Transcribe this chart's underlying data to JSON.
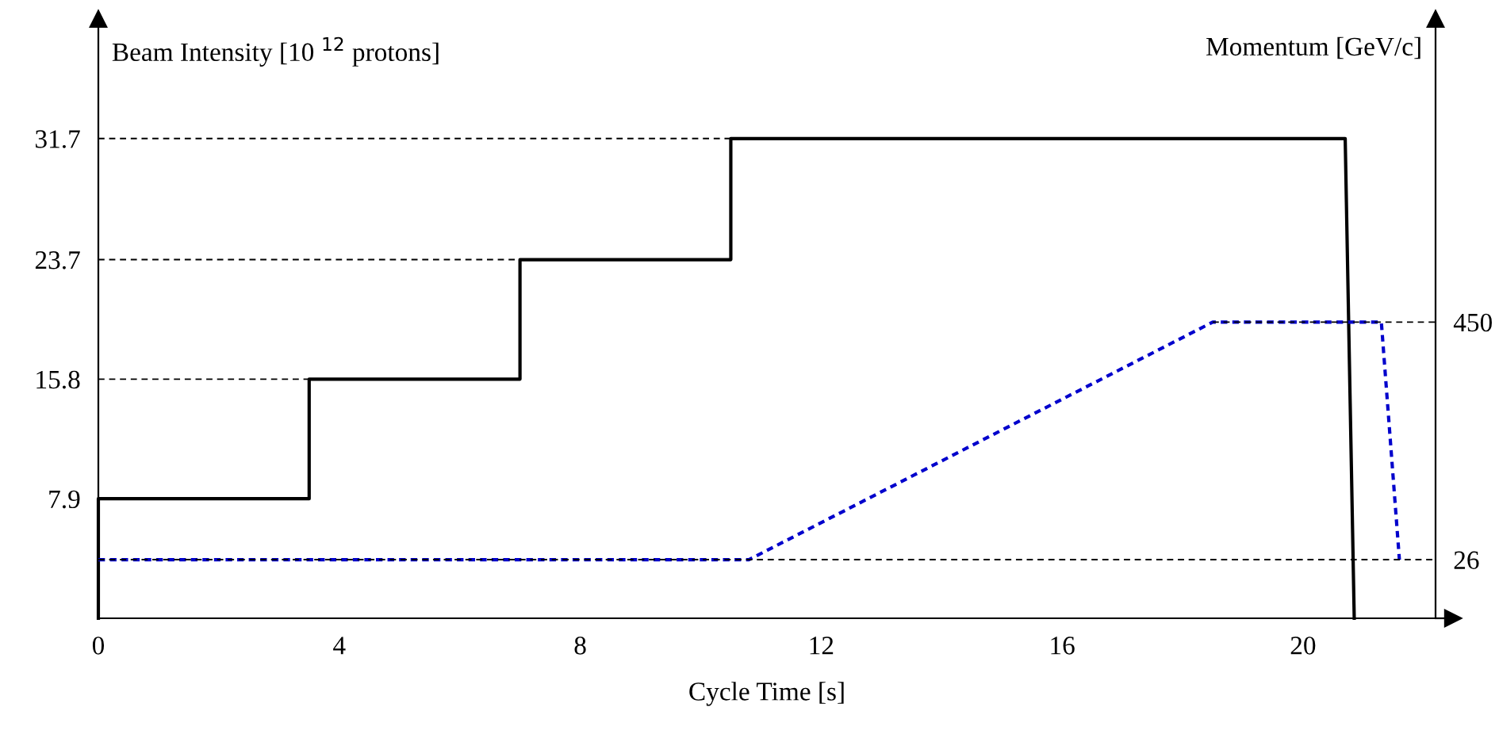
{
  "chart_data": {
    "type": "line",
    "xlabel": "Cycle Time [s]",
    "ylabel": "Beam Intensity [10 $^{12}$ protons]",
    "y2label": "Momentum [GeV/c]",
    "series": [
      {
        "color": "#000000",
        "x": [
          0,
          0,
          3.5,
          3.5,
          7,
          7,
          10.5,
          10.5,
          20.7,
          20.85
        ],
        "values": [
          0,
          7.9,
          7.9,
          15.8,
          15.8,
          23.7,
          23.7,
          31.7,
          31.7,
          0
        ],
        "line_style": "solid"
      },
      {
        "color": "#0000cc",
        "axis": "y2",
        "x": [
          0,
          10.8,
          18.5,
          21.3,
          21.6
        ],
        "values": [
          26,
          26,
          450,
          450,
          26
        ],
        "line_style": "dotted"
      }
    ],
    "xlim": [
      0,
      22.2
    ],
    "xticks": [
      0,
      4,
      8,
      12,
      16,
      20
    ],
    "ylim": [
      0,
      39.6
    ],
    "yticks": [
      7.9,
      15.8,
      23.7,
      31.7
    ],
    "y2lim": [
      -78.6,
      991
    ],
    "y2ticks": [
      26,
      450
    ],
    "ref_lines": [
      {
        "axis": "y",
        "value": 15.8,
        "color": "#000000",
        "line_style": "dashed"
      },
      {
        "axis": "y",
        "value": 23.7,
        "color": "#000000",
        "line_style": "dashed"
      },
      {
        "axis": "y",
        "value": 31.7,
        "color": "#000000",
        "line_style": "dashed"
      },
      {
        "axis": "y2",
        "value": 26,
        "color": "#000000",
        "line_style": "dashed"
      },
      {
        "axis": "y2",
        "value": 450,
        "color": "#000000",
        "line_style": "dashed"
      }
    ],
    "grid": false,
    "marker": "none"
  }
}
